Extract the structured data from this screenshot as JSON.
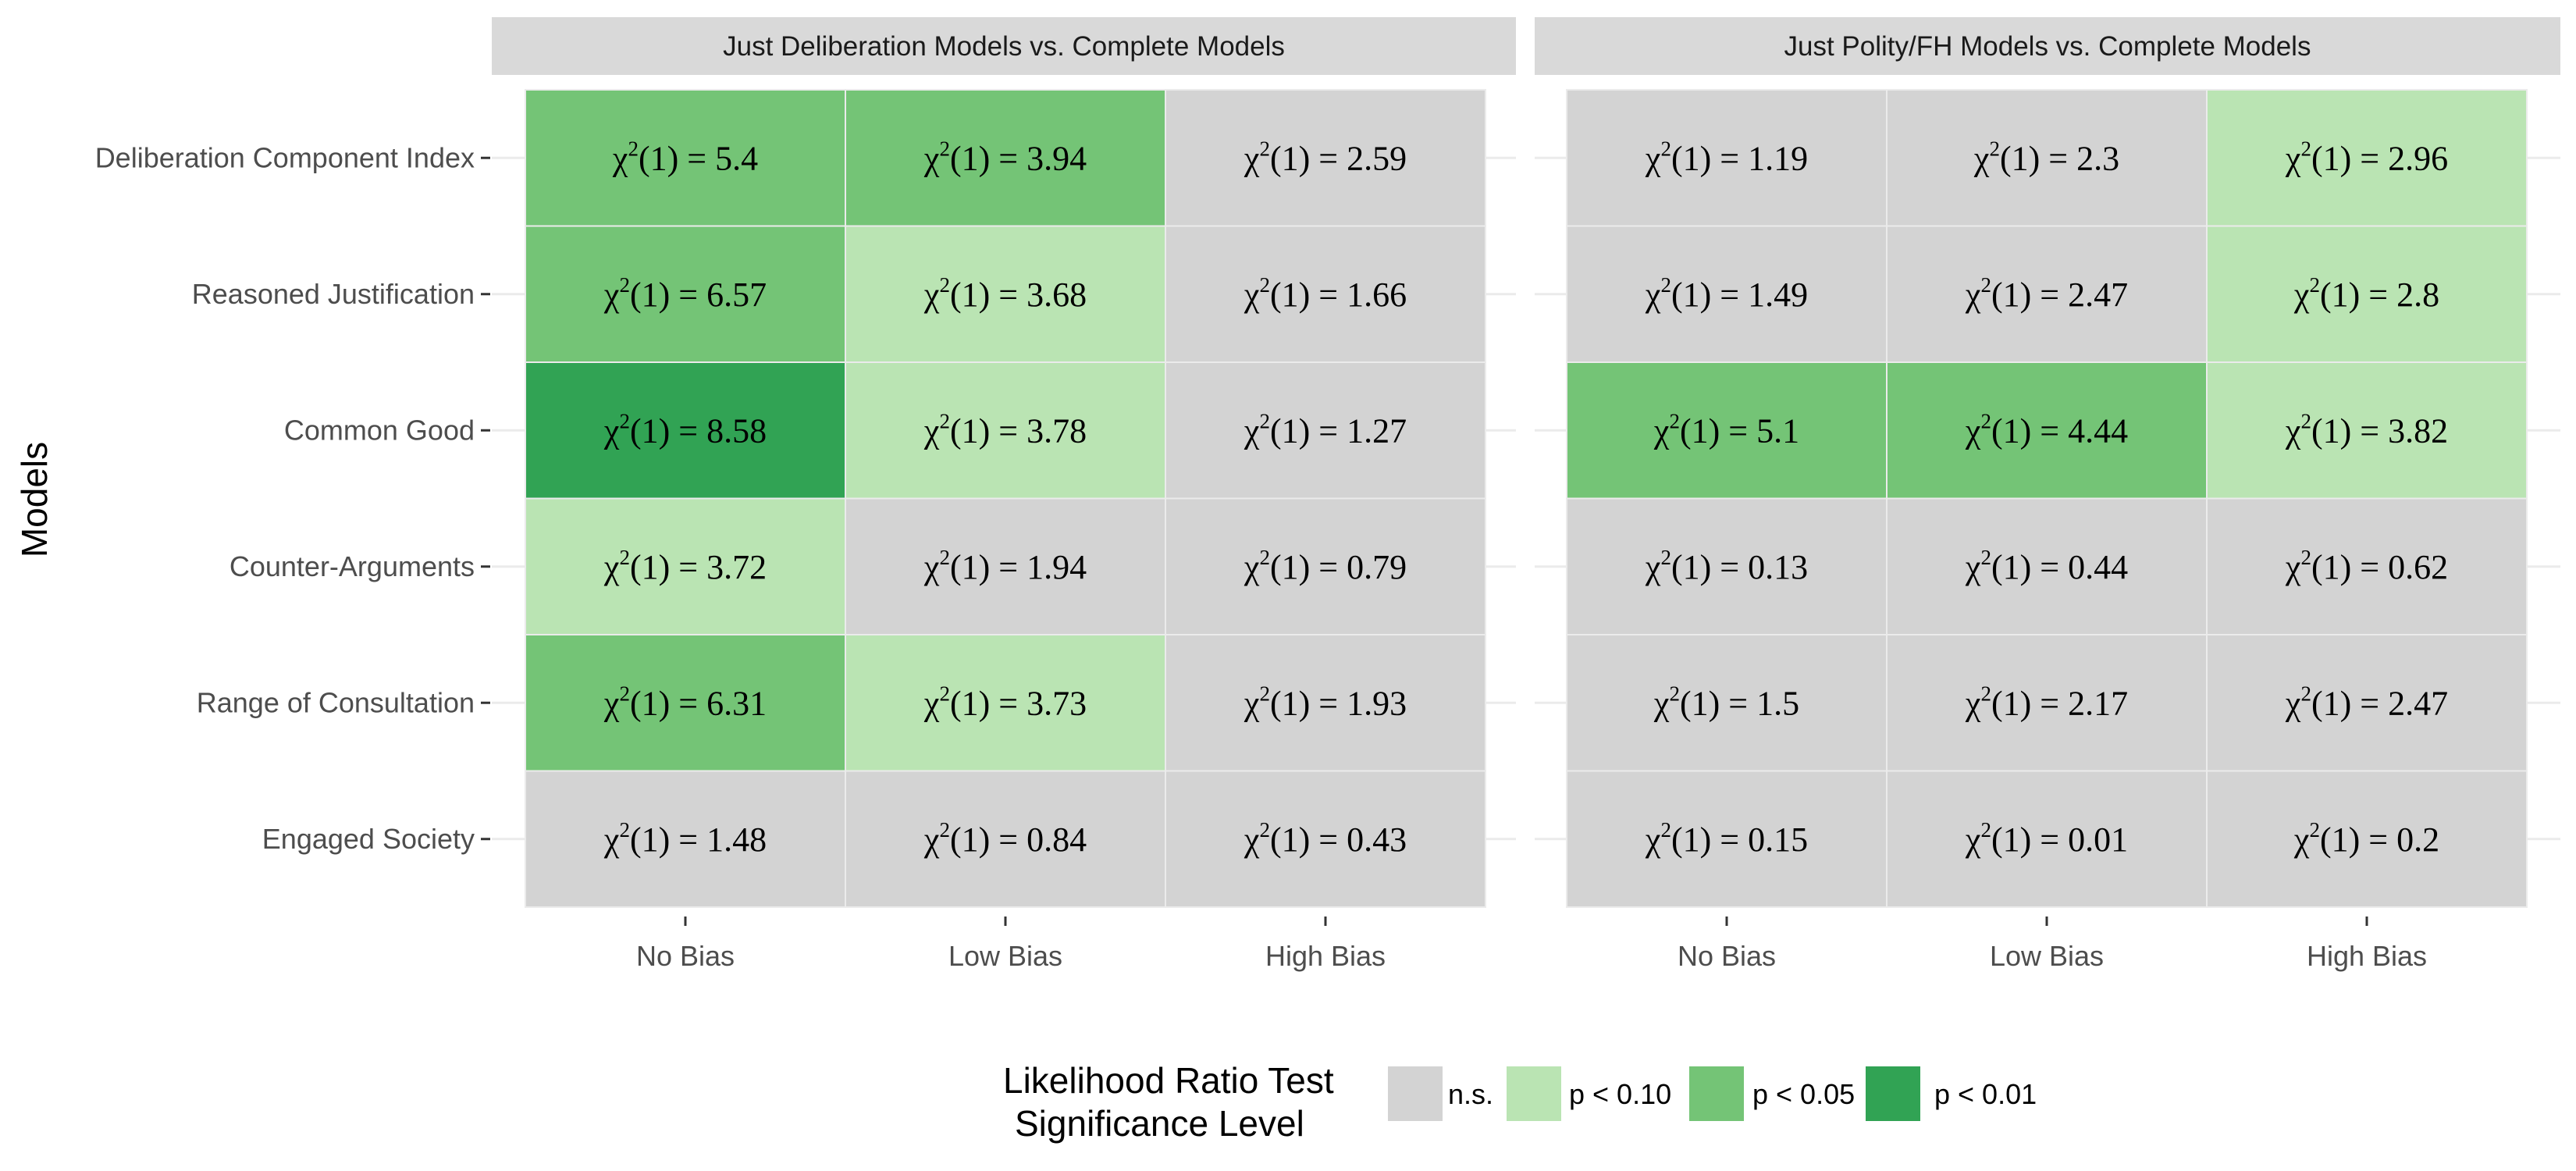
{
  "chart_data": {
    "type": "heatmap",
    "ylabel": "Models",
    "xlabel": "",
    "rows": [
      "Deliberation Component Index",
      "Reasoned Justification",
      "Common Good",
      "Counter-Arguments",
      "Range of Consultation",
      "Engaged Society"
    ],
    "columns": [
      "No Bias",
      "Low Bias",
      "High Bias"
    ],
    "cell_label_prefix": "χ",
    "cell_label_sup": "2",
    "cell_label_mid": "(1) = ",
    "facets": [
      {
        "title": "Just Deliberation Models vs. Complete Models",
        "values": [
          [
            5.4,
            3.94,
            2.59
          ],
          [
            6.57,
            3.68,
            1.66
          ],
          [
            8.58,
            3.78,
            1.27
          ],
          [
            3.72,
            1.94,
            0.79
          ],
          [
            6.31,
            3.73,
            1.93
          ],
          [
            1.48,
            0.84,
            0.43
          ]
        ],
        "levels": [
          [
            "p < 0.05",
            "p < 0.05",
            "n.s."
          ],
          [
            "p < 0.05",
            "p < 0.10",
            "n.s."
          ],
          [
            "p < 0.01",
            "p < 0.10",
            "n.s."
          ],
          [
            "p < 0.10",
            "n.s.",
            "n.s."
          ],
          [
            "p < 0.05",
            "p < 0.10",
            "n.s."
          ],
          [
            "n.s.",
            "n.s.",
            "n.s."
          ]
        ]
      },
      {
        "title": "Just Polity/FH Models vs. Complete Models",
        "values": [
          [
            1.19,
            2.3,
            2.96
          ],
          [
            1.49,
            2.47,
            2.8
          ],
          [
            5.1,
            4.44,
            3.82
          ],
          [
            0.13,
            0.44,
            0.62
          ],
          [
            1.5,
            2.17,
            2.47
          ],
          [
            0.15,
            0.01,
            0.2
          ]
        ],
        "levels": [
          [
            "n.s.",
            "n.s.",
            "p < 0.10"
          ],
          [
            "n.s.",
            "n.s.",
            "p < 0.10"
          ],
          [
            "p < 0.05",
            "p < 0.05",
            "p < 0.10"
          ],
          [
            "n.s.",
            "n.s.",
            "n.s."
          ],
          [
            "n.s.",
            "n.s.",
            "n.s."
          ],
          [
            "n.s.",
            "n.s.",
            "n.s."
          ]
        ]
      }
    ],
    "legend": {
      "title_line1": "Likelihood Ratio Test",
      "title_line2": "Significance Level",
      "placement": "bottom",
      "entries": [
        {
          "label": "n.s.",
          "color": "#d3d3d3"
        },
        {
          "label": "p < 0.10",
          "color": "#bae4b3"
        },
        {
          "label": "p < 0.05",
          "color": "#74c476"
        },
        {
          "label": "p < 0.01",
          "color": "#31a354"
        }
      ]
    },
    "colors": {
      "strip_background": "#d9d9d9",
      "grid_line": "#ebebeb",
      "tick_color": "#333333"
    }
  }
}
